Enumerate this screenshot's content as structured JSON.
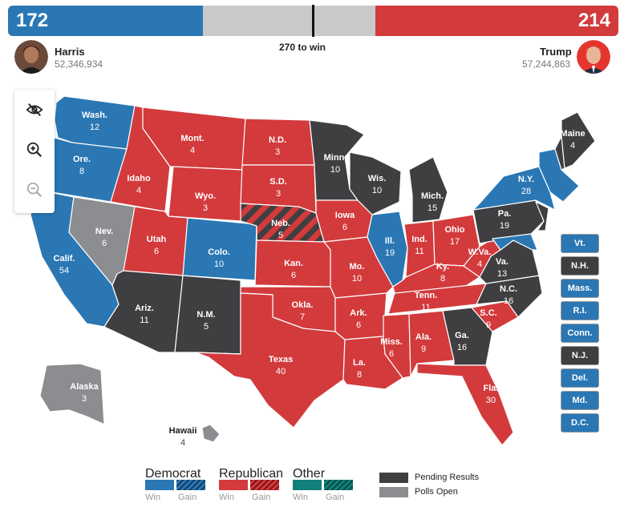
{
  "colors": {
    "dem": "#2a77b4",
    "rep": "#d33a3c",
    "other": "#12807a",
    "pending": "#3f3f42",
    "open": "#8b8d90",
    "uncalled": "#c9c9c9"
  },
  "scoreboard": {
    "dem_ev": "172",
    "rep_ev": "214",
    "threshold_label": "270 to win"
  },
  "candidates": {
    "dem": {
      "name": "Harris",
      "votes": "52,346,934"
    },
    "rep": {
      "name": "Trump",
      "votes": "57,244,863"
    }
  },
  "controls": {
    "hide_icon": "eye-slash-icon",
    "zoom_in_icon": "zoom-in-icon",
    "zoom_out_icon": "zoom-out-icon"
  },
  "states": [
    {
      "abbr": "Wash.",
      "ev": "12",
      "status": "dem"
    },
    {
      "abbr": "Ore.",
      "ev": "8",
      "status": "dem"
    },
    {
      "abbr": "Calif.",
      "ev": "54",
      "status": "dem"
    },
    {
      "abbr": "Nev.",
      "ev": "6",
      "status": "open"
    },
    {
      "abbr": "Idaho",
      "ev": "4",
      "status": "rep"
    },
    {
      "abbr": "Mont.",
      "ev": "4",
      "status": "rep"
    },
    {
      "abbr": "Wyo.",
      "ev": "3",
      "status": "rep"
    },
    {
      "abbr": "Utah",
      "ev": "6",
      "status": "rep"
    },
    {
      "abbr": "Colo.",
      "ev": "10",
      "status": "dem"
    },
    {
      "abbr": "Ariz.",
      "ev": "11",
      "status": "pending"
    },
    {
      "abbr": "N.M.",
      "ev": "5",
      "status": "pending"
    },
    {
      "abbr": "N.D.",
      "ev": "3",
      "status": "rep"
    },
    {
      "abbr": "S.D.",
      "ev": "3",
      "status": "rep"
    },
    {
      "abbr": "Neb.",
      "ev": "5",
      "status": "rep-split"
    },
    {
      "abbr": "Kan.",
      "ev": "6",
      "status": "rep"
    },
    {
      "abbr": "Okla.",
      "ev": "7",
      "status": "rep"
    },
    {
      "abbr": "Texas",
      "ev": "40",
      "status": "rep"
    },
    {
      "abbr": "Minn.",
      "ev": "10",
      "status": "pending"
    },
    {
      "abbr": "Iowa",
      "ev": "6",
      "status": "rep"
    },
    {
      "abbr": "Mo.",
      "ev": "10",
      "status": "rep"
    },
    {
      "abbr": "Ark.",
      "ev": "6",
      "status": "rep"
    },
    {
      "abbr": "La.",
      "ev": "8",
      "status": "rep"
    },
    {
      "abbr": "Wis.",
      "ev": "10",
      "status": "pending"
    },
    {
      "abbr": "Ill.",
      "ev": "19",
      "status": "dem"
    },
    {
      "abbr": "Mich.",
      "ev": "15",
      "status": "pending"
    },
    {
      "abbr": "Ind.",
      "ev": "11",
      "status": "rep"
    },
    {
      "abbr": "Ohio",
      "ev": "17",
      "status": "rep"
    },
    {
      "abbr": "Ky.",
      "ev": "8",
      "status": "rep"
    },
    {
      "abbr": "Tenn.",
      "ev": "11",
      "status": "rep"
    },
    {
      "abbr": "Miss.",
      "ev": "6",
      "status": "rep"
    },
    {
      "abbr": "Ala.",
      "ev": "9",
      "status": "rep"
    },
    {
      "abbr": "Ga.",
      "ev": "16",
      "status": "pending"
    },
    {
      "abbr": "Fla.",
      "ev": "30",
      "status": "rep"
    },
    {
      "abbr": "S.C.",
      "ev": "9",
      "status": "rep"
    },
    {
      "abbr": "N.C.",
      "ev": "16",
      "status": "pending"
    },
    {
      "abbr": "Va.",
      "ev": "13",
      "status": "pending"
    },
    {
      "abbr": "W.Va.",
      "ev": "4",
      "status": "rep"
    },
    {
      "abbr": "Pa.",
      "ev": "19",
      "status": "pending"
    },
    {
      "abbr": "N.Y.",
      "ev": "28",
      "status": "dem"
    },
    {
      "abbr": "Maine",
      "ev": "4",
      "status": "pending"
    },
    {
      "abbr": "Alaska",
      "ev": "3",
      "status": "open"
    },
    {
      "abbr": "Hawaii",
      "ev": "4",
      "status": "uncalled"
    }
  ],
  "small_states": [
    {
      "label": "Vt.",
      "status": "dem"
    },
    {
      "label": "N.H.",
      "status": "pending"
    },
    {
      "label": "Mass.",
      "status": "dem"
    },
    {
      "label": "R.I.",
      "status": "dem"
    },
    {
      "label": "Conn.",
      "status": "dem"
    },
    {
      "label": "N.J.",
      "status": "pending"
    },
    {
      "label": "Del.",
      "status": "dem"
    },
    {
      "label": "Md.",
      "status": "dem"
    },
    {
      "label": "D.C.",
      "status": "dem"
    }
  ],
  "legend": {
    "groups": [
      {
        "name": "Democrat",
        "win": "Win",
        "gain": "Gain",
        "color": "#2a77b4"
      },
      {
        "name": "Republican",
        "win": "Win",
        "gain": "Gain",
        "color": "#d33a3c"
      },
      {
        "name": "Other",
        "win": "Win",
        "gain": "Gain",
        "color": "#12807a"
      }
    ],
    "pending_label": "Pending Results",
    "open_label": "Polls Open"
  }
}
